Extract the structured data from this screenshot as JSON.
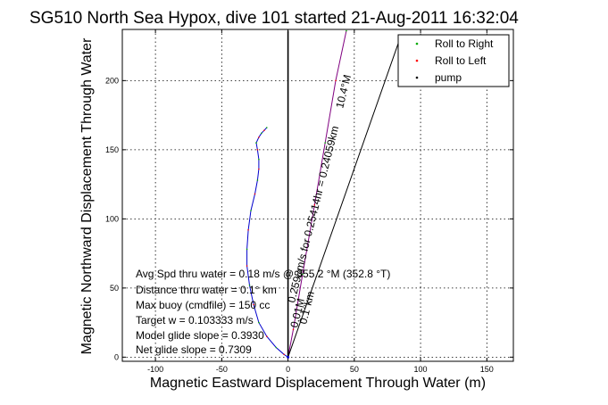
{
  "chart_data": {
    "type": "line",
    "title": "SG510 North Sea Hypox, dive 101 started 21-Aug-2011 16:32:04",
    "xlabel": "Magnetic Eastward Displacement Through Water (m)",
    "ylabel": "Magnetic Northward Displacement Through Water",
    "xlim": [
      -125,
      170
    ],
    "ylim": [
      -3,
      237
    ],
    "xticks": [
      -100,
      -50,
      0,
      50,
      100,
      150
    ],
    "yticks": [
      0,
      50,
      100,
      150,
      200
    ],
    "grid": true,
    "legend_position": "top-right",
    "legend": [
      {
        "label": "Roll to Right",
        "color": "#00aa00"
      },
      {
        "label": "Roll to Left",
        "color": "#ff0000"
      },
      {
        "label": "pump",
        "color": "#000000"
      }
    ],
    "series": [
      {
        "role": "track",
        "color": "#0000cc",
        "x": [
          0,
          -3,
          -9,
          -16,
          -22,
          -26,
          -29,
          -31,
          -31,
          -30,
          -28,
          -25,
          -23,
          -22,
          -22,
          -23,
          -24,
          -22,
          -20,
          -18,
          -16
        ],
        "y": [
          0,
          2,
          7,
          15,
          25,
          38,
          52,
          66,
          78,
          92,
          106,
          118,
          128,
          136,
          143,
          150,
          155,
          159,
          162,
          164,
          166
        ]
      },
      {
        "role": "heading",
        "color": "#800080",
        "x": [
          0,
          4,
          11,
          20,
          28,
          36,
          44
        ],
        "y": [
          0,
          20,
          60,
          110,
          155,
          200,
          236
        ]
      },
      {
        "role": "reference",
        "color": "#000000",
        "x": [
          0,
          0,
          0,
          0,
          0
        ],
        "y": [
          0,
          60,
          130,
          200,
          236
        ]
      },
      {
        "role": "pointer",
        "color": "#000000",
        "x": [
          0,
          85
        ],
        "y": [
          0,
          232
        ]
      }
    ],
    "annotations": {
      "rotated_main": "0.2598m/s for 0.25414hr = 0.24059km",
      "rotated_heading": "10.4°M",
      "rotated_small": "0.1°km",
      "rotated_small2": "0.01M",
      "info_lines": [
        "Avg Spd thru water =  0.18 m/s @ 355.2   °M (352.8 °T)",
        "Distance thru water =  0.1° km",
        "Max buoy (cmdfile) = 150 cc",
        "Target w = 0.103333 m/s",
        "Model glide slope = 0.3930",
        "Net glide slope = 0.7309"
      ]
    }
  }
}
